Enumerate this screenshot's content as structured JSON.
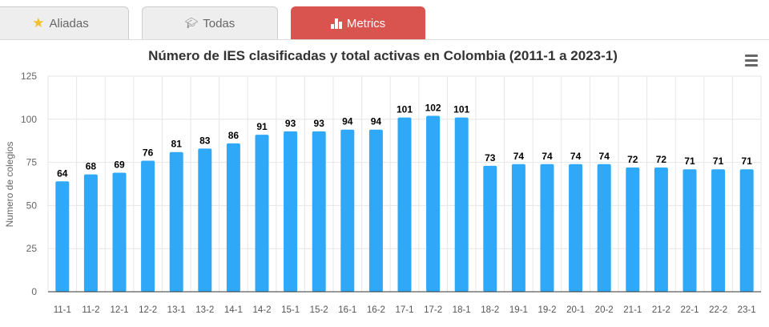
{
  "tabs": [
    {
      "label": "Aliadas",
      "icon": "star-icon",
      "active": false
    },
    {
      "label": "Todas",
      "icon": "graduation-cap-icon",
      "active": false
    },
    {
      "label": "Metrics",
      "icon": "bar-chart-icon",
      "active": true
    }
  ],
  "colors": {
    "bar": "#2ea8f7",
    "active_tab": "#d9534f",
    "star": "#f2c029"
  },
  "chart_data": {
    "type": "bar",
    "title": "Número de IES clasificadas y total activas en Colombia (2011-1 a 2023-1)",
    "xlabel": "",
    "ylabel": "Numero de colegios",
    "ylim": [
      0,
      125
    ],
    "yticks": [
      0,
      25,
      50,
      75,
      100,
      125
    ],
    "grid": true,
    "data_labels": true,
    "categories": [
      "11-1",
      "11-2",
      "12-1",
      "12-2",
      "13-1",
      "13-2",
      "14-1",
      "14-2",
      "15-1",
      "15-2",
      "16-1",
      "16-2",
      "17-1",
      "17-2",
      "18-1",
      "18-2",
      "19-1",
      "19-2",
      "20-1",
      "20-2",
      "21-1",
      "21-2",
      "22-1",
      "22-2",
      "23-1"
    ],
    "values": [
      64,
      68,
      69,
      76,
      81,
      83,
      86,
      91,
      93,
      93,
      94,
      94,
      101,
      102,
      101,
      73,
      74,
      74,
      74,
      74,
      72,
      72,
      71,
      71,
      71
    ]
  }
}
